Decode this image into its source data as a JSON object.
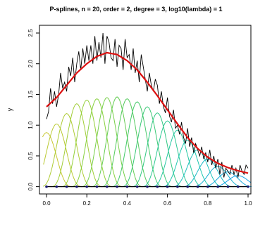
{
  "chart_data": {
    "type": "line",
    "title": "P-splines, n = 20, order = 2, degree = 3, log10(lambda) = 1",
    "xlabel": "",
    "ylabel": "y",
    "xlim": [
      0,
      1
    ],
    "ylim": [
      0,
      2.5
    ],
    "x_ticks": [
      "0.0",
      "0.2",
      "0.4",
      "0.6",
      "0.8",
      "1.0"
    ],
    "y_ticks": [
      "0.0",
      "0.5",
      "1.0",
      "1.5",
      "2.0",
      "2.5"
    ],
    "grid": false,
    "colors": {
      "data_line": "#000000",
      "fit_line": "#dd1111",
      "knots": "#1a1a6e",
      "basis_gradient": [
        "#c8c832",
        "#8cd23c",
        "#3cc86e",
        "#1ec8b4",
        "#14a0e6"
      ]
    },
    "series": [
      {
        "type": "line",
        "x": [
          0.0,
          0.01,
          0.02,
          0.03,
          0.04,
          0.05,
          0.06,
          0.07,
          0.08,
          0.09,
          0.1,
          0.11,
          0.12,
          0.13,
          0.14,
          0.15,
          0.16,
          0.17,
          0.18,
          0.19,
          0.2,
          0.21,
          0.22,
          0.23,
          0.24,
          0.25,
          0.26,
          0.27,
          0.28,
          0.29,
          0.3,
          0.31,
          0.32,
          0.33,
          0.34,
          0.35,
          0.36,
          0.37,
          0.38,
          0.39,
          0.4,
          0.41,
          0.42,
          0.43,
          0.44,
          0.45,
          0.46,
          0.47,
          0.48,
          0.49,
          0.5,
          0.51,
          0.52,
          0.53,
          0.54,
          0.55,
          0.56,
          0.57,
          0.58,
          0.59,
          0.6,
          0.61,
          0.62,
          0.63,
          0.64,
          0.65,
          0.66,
          0.67,
          0.68,
          0.69,
          0.7,
          0.71,
          0.72,
          0.73,
          0.74,
          0.75,
          0.76,
          0.77,
          0.78,
          0.79,
          0.8,
          0.81,
          0.82,
          0.83,
          0.84,
          0.85,
          0.86,
          0.87,
          0.88,
          0.89,
          0.9,
          0.91,
          0.92,
          0.93,
          0.94,
          0.95,
          0.96,
          0.97,
          0.98,
          0.99,
          1.0
        ],
        "y": [
          1.1,
          1.22,
          1.6,
          1.35,
          1.55,
          1.3,
          1.5,
          1.85,
          1.6,
          1.7,
          1.55,
          1.95,
          1.8,
          2.1,
          1.7,
          2.0,
          2.2,
          1.9,
          2.25,
          2.0,
          2.3,
          2.05,
          2.3,
          2.0,
          2.45,
          2.05,
          2.35,
          2.1,
          2.5,
          2.0,
          2.45,
          2.35,
          2.1,
          2.05,
          2.4,
          1.95,
          2.3,
          2.25,
          1.9,
          2.4,
          2.1,
          2.15,
          1.9,
          2.25,
          1.85,
          2.05,
          1.7,
          2.15,
          1.95,
          1.75,
          1.55,
          1.85,
          1.65,
          1.55,
          1.75,
          1.65,
          1.35,
          1.55,
          1.3,
          1.2,
          1.45,
          1.15,
          1.05,
          1.25,
          0.95,
          1.0,
          0.85,
          1.05,
          0.8,
          0.7,
          0.95,
          0.65,
          0.8,
          0.55,
          0.7,
          0.6,
          0.5,
          0.65,
          0.45,
          0.55,
          0.4,
          0.6,
          0.35,
          0.5,
          0.3,
          0.45,
          0.2,
          0.4,
          0.15,
          0.3,
          0.25,
          0.2,
          0.35,
          0.2,
          0.3,
          0.15,
          0.35,
          0.25,
          0.2,
          0.35,
          0.3
        ]
      },
      {
        "type": "line",
        "x": [
          0.0,
          0.05,
          0.1,
          0.15,
          0.2,
          0.25,
          0.3,
          0.35,
          0.4,
          0.45,
          0.5,
          0.55,
          0.6,
          0.65,
          0.7,
          0.75,
          0.8,
          0.85,
          0.9,
          0.95,
          1.0
        ],
        "y": [
          1.3,
          1.45,
          1.65,
          1.85,
          2.0,
          2.12,
          2.18,
          2.15,
          2.05,
          1.9,
          1.7,
          1.48,
          1.25,
          1.02,
          0.8,
          0.62,
          0.48,
          0.38,
          0.31,
          0.26,
          0.22
        ]
      }
    ],
    "basis": {
      "count": 20,
      "peak_x": [
        0.0,
        0.05,
        0.1,
        0.15,
        0.2,
        0.25,
        0.3,
        0.35,
        0.4,
        0.45,
        0.5,
        0.55,
        0.6,
        0.65,
        0.7,
        0.75,
        0.8,
        0.85,
        0.9,
        0.95
      ],
      "peak_y": [
        0.88,
        1.02,
        1.19,
        1.35,
        1.41,
        1.43,
        1.45,
        1.46,
        1.43,
        1.38,
        1.3,
        1.2,
        1.07,
        0.92,
        0.76,
        0.6,
        0.45,
        0.33,
        0.24,
        0.18
      ],
      "half_width": 0.065
    },
    "knots_x": [
      0.0,
      0.05,
      0.1,
      0.15,
      0.2,
      0.25,
      0.3,
      0.35,
      0.4,
      0.45,
      0.5,
      0.55,
      0.6,
      0.65,
      0.7,
      0.75,
      0.8,
      0.85,
      0.9,
      0.95,
      1.0
    ]
  }
}
